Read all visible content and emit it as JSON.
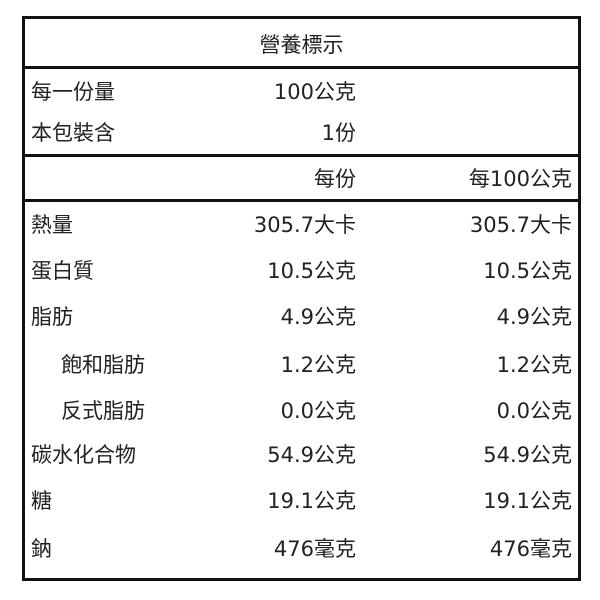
{
  "title": "營養標示",
  "serving": {
    "label": "每一份量",
    "value": "100公克"
  },
  "package": {
    "label": "本包裝含",
    "value": "1份"
  },
  "headers": {
    "per_serving": "每份",
    "per_100g": "每100公克"
  },
  "rows": [
    {
      "name": "熱量",
      "per_serving": "305.7大卡",
      "per_100g": "305.7大卡",
      "indent": false
    },
    {
      "name": "蛋白質",
      "per_serving": "10.5公克",
      "per_100g": "10.5公克",
      "indent": false
    },
    {
      "name": "脂肪",
      "per_serving": "4.9公克",
      "per_100g": "4.9公克",
      "indent": false
    },
    {
      "name": "飽和脂肪",
      "per_serving": "1.2公克",
      "per_100g": "1.2公克",
      "indent": true
    },
    {
      "name": "反式脂肪",
      "per_serving": "0.0公克",
      "per_100g": "0.0公克",
      "indent": true
    },
    {
      "name": "碳水化合物",
      "per_serving": "54.9公克",
      "per_100g": "54.9公克",
      "indent": false
    },
    {
      "name": "糖",
      "per_serving": "19.1公克",
      "per_100g": "19.1公克",
      "indent": false
    },
    {
      "name": "鈉",
      "per_serving": "476毫克",
      "per_100g": "476毫克",
      "indent": false
    }
  ]
}
